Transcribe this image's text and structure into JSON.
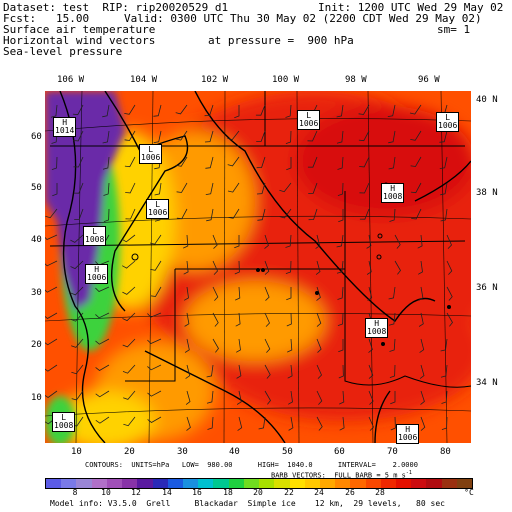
{
  "header": {
    "dataset": "Dataset: test  RIP: rip20020529 d1",
    "init": "Init: 1200 UTC Wed 29 May 02",
    "fcst": "Fcst:   15.00",
    "valid": "Valid: 0300 UTC Thu 30 May 02 (2200 CDT Wed 29 May 02)",
    "field1": "Surface air temperature",
    "sm": "sm= 1",
    "field2": "Horizontal wind vectors",
    "pressure": "at pressure =  900 hPa",
    "field3": "Sea-level pressure"
  },
  "top_labels": [
    "106 W",
    "104 W",
    "102 W",
    "100 W",
    "98 W",
    "96 W"
  ],
  "right_labels": [
    "40 N",
    "38 N",
    "36 N",
    "34 N"
  ],
  "left_ticks": [
    "60",
    "50",
    "40",
    "30",
    "20",
    "10"
  ],
  "bottom_ticks": [
    "10",
    "20",
    "30",
    "40",
    "50",
    "60",
    "70",
    "80"
  ],
  "highs_lows": [
    {
      "type": "H",
      "value": "1014"
    },
    {
      "type": "L",
      "value": "1006"
    },
    {
      "type": "L",
      "value": "1006"
    },
    {
      "type": "L",
      "value": "1006"
    },
    {
      "type": "H",
      "value": "1008"
    },
    {
      "type": "L",
      "value": "1006"
    },
    {
      "type": "L",
      "value": "1008"
    },
    {
      "type": "H",
      "value": "1006"
    },
    {
      "type": "H",
      "value": "1008"
    },
    {
      "type": "L",
      "value": "1008"
    },
    {
      "type": "H",
      "value": "1006"
    }
  ],
  "footer": {
    "contours": "CONTOURS:  UNITS=hPa   LOW=  980.00      HIGH=  1040.0      INTERVAL=    2.0000",
    "barbs": "BARB VECTORS:  FULL BARB = 5 m s",
    "barbs_sup": "-1",
    "model_info": "Model info: V3.5.0  Grell     Blackadar  Simple ice    12 km,  29 levels,   80 sec"
  },
  "colorbar": {
    "labels": [
      "8",
      "10",
      "12",
      "14",
      "16",
      "18",
      "20",
      "22",
      "24",
      "26",
      "28",
      "°C"
    ],
    "colors": [
      "#5c5ce6",
      "#7a7ae8",
      "#9a86d6",
      "#b070c8",
      "#a050b8",
      "#8833a8",
      "#5a1aa0",
      "#2a2ab8",
      "#1a5ae0",
      "#1a90e0",
      "#00c0d0",
      "#00c890",
      "#20d040",
      "#70dc20",
      "#a8e000",
      "#d8e000",
      "#ffe000",
      "#ffc800",
      "#ffa800",
      "#ff8800",
      "#ff6800",
      "#f84800",
      "#f02800",
      "#e41000",
      "#cc0c10",
      "#b00c10",
      "#9a3010",
      "#804010"
    ]
  },
  "colors": {
    "warm_core": "#e8200c",
    "warm": "#ff5000",
    "mid": "#ff9a00",
    "cool": "#ffd200",
    "green": "#3cd23c",
    "purple": "#6a2aa8"
  }
}
